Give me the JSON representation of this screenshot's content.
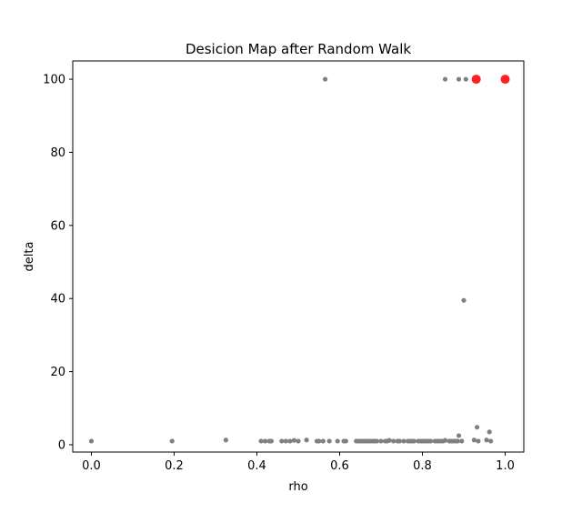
{
  "chart_data": {
    "type": "scatter",
    "title": "Desicion Map after Random Walk",
    "xlabel": "rho",
    "ylabel": "delta",
    "xlim": [
      -0.045,
      1.045
    ],
    "ylim": [
      -2.0,
      105.0
    ],
    "xticks": [
      0.0,
      0.2,
      0.4,
      0.6,
      0.8,
      1.0
    ],
    "xtick_labels": [
      "0.0",
      "0.2",
      "0.4",
      "0.6",
      "0.8",
      "1.0"
    ],
    "yticks": [
      0,
      20,
      40,
      60,
      80,
      100
    ],
    "ytick_labels": [
      "0",
      "20",
      "40",
      "60",
      "80",
      "100"
    ],
    "grid": false,
    "legend": "none",
    "colors": {
      "points": "#808080",
      "centers": "#ff2020"
    },
    "series": [
      {
        "color": "#808080",
        "marker_size": "small",
        "points": [
          [
            0.0,
            1.0
          ],
          [
            0.195,
            1.0
          ],
          [
            0.325,
            1.3
          ],
          [
            0.41,
            1.0
          ],
          [
            0.42,
            1.0
          ],
          [
            0.43,
            1.0
          ],
          [
            0.435,
            1.0
          ],
          [
            0.46,
            1.0
          ],
          [
            0.47,
            1.0
          ],
          [
            0.48,
            1.0
          ],
          [
            0.49,
            1.2
          ],
          [
            0.5,
            1.0
          ],
          [
            0.52,
            1.3
          ],
          [
            0.545,
            1.0
          ],
          [
            0.55,
            1.0
          ],
          [
            0.56,
            1.0
          ],
          [
            0.575,
            1.0
          ],
          [
            0.595,
            1.0
          ],
          [
            0.61,
            1.0
          ],
          [
            0.615,
            1.0
          ],
          [
            0.64,
            1.0
          ],
          [
            0.645,
            1.0
          ],
          [
            0.65,
            1.0
          ],
          [
            0.655,
            1.0
          ],
          [
            0.66,
            1.0
          ],
          [
            0.665,
            1.0
          ],
          [
            0.67,
            1.0
          ],
          [
            0.675,
            1.0
          ],
          [
            0.68,
            1.0
          ],
          [
            0.685,
            1.0
          ],
          [
            0.69,
            1.0
          ],
          [
            0.7,
            1.0
          ],
          [
            0.71,
            1.0
          ],
          [
            0.715,
            1.0
          ],
          [
            0.72,
            1.2
          ],
          [
            0.73,
            1.0
          ],
          [
            0.74,
            1.0
          ],
          [
            0.745,
            1.0
          ],
          [
            0.755,
            1.0
          ],
          [
            0.765,
            1.0
          ],
          [
            0.77,
            1.0
          ],
          [
            0.775,
            1.0
          ],
          [
            0.78,
            1.0
          ],
          [
            0.79,
            1.0
          ],
          [
            0.795,
            1.0
          ],
          [
            0.8,
            1.0
          ],
          [
            0.805,
            1.0
          ],
          [
            0.81,
            1.0
          ],
          [
            0.815,
            1.0
          ],
          [
            0.82,
            1.0
          ],
          [
            0.83,
            1.0
          ],
          [
            0.835,
            1.0
          ],
          [
            0.84,
            1.0
          ],
          [
            0.845,
            1.0
          ],
          [
            0.85,
            1.0
          ],
          [
            0.855,
            1.2
          ],
          [
            0.865,
            1.0
          ],
          [
            0.87,
            1.0
          ],
          [
            0.875,
            1.0
          ],
          [
            0.88,
            1.0
          ],
          [
            0.885,
            1.0
          ],
          [
            0.888,
            2.5
          ],
          [
            0.895,
            1.0
          ],
          [
            0.9,
            39.5
          ],
          [
            0.925,
            1.3
          ],
          [
            0.935,
            1.0
          ],
          [
            0.932,
            4.8
          ],
          [
            0.955,
            1.3
          ],
          [
            0.962,
            3.5
          ],
          [
            0.965,
            1.0
          ],
          [
            0.565,
            100.0
          ],
          [
            0.855,
            100.0
          ],
          [
            0.888,
            100.0
          ],
          [
            0.905,
            100.0
          ]
        ]
      },
      {
        "color": "#ff2020",
        "marker_size": "large",
        "points": [
          [
            0.93,
            100.0
          ],
          [
            1.0,
            100.0
          ]
        ]
      }
    ]
  }
}
